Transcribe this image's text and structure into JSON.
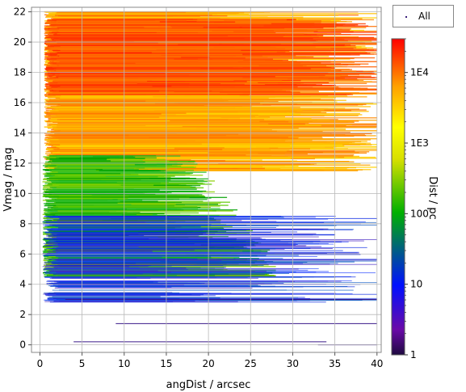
{
  "chart_data": {
    "type": "scatter",
    "xlabel": "angDist / arcsec",
    "ylabel": "Vmag / mag",
    "xlim": [
      -1,
      40.5
    ],
    "ylim": [
      -0.5,
      22.3
    ],
    "x_ticks": [
      0,
      5,
      10,
      15,
      20,
      25,
      30,
      35,
      40
    ],
    "y_ticks": [
      0,
      2,
      4,
      6,
      8,
      10,
      12,
      14,
      16,
      18,
      20,
      22
    ],
    "grid": true,
    "legend": {
      "position": "top-right",
      "entries": [
        "All"
      ]
    },
    "colorbar": {
      "label": "Dist / pc",
      "scale": "log",
      "range": [
        1,
        30000
      ],
      "ticks": [
        {
          "label": "1",
          "value": 1
        },
        {
          "label": "10",
          "value": 10
        },
        {
          "label": "100",
          "value": 100
        },
        {
          "label": "1E3",
          "value": 1000
        },
        {
          "label": "1E4",
          "value": 10000
        }
      ],
      "colors": [
        "#2a0f50",
        "#5a0aa0",
        "#0000ff",
        "#00a800",
        "#c8d800",
        "#ffff00",
        "#ffa500",
        "#ff0000"
      ]
    },
    "density_regions": [
      {
        "x": [
          0.5,
          40
        ],
        "y": [
          11.5,
          22
        ],
        "dist_pc": 3000,
        "description_color": "#ff9a1a"
      },
      {
        "x": [
          0.5,
          40
        ],
        "y": [
          16.5,
          21.5
        ],
        "dist_pc": 8000,
        "description_color": "#ff5500"
      },
      {
        "x": [
          0.3,
          28
        ],
        "y": [
          4.5,
          12.5
        ],
        "dist_pc": 100,
        "description_color": "#10b010"
      },
      {
        "x": [
          0.3,
          40
        ],
        "y": [
          2.8,
          8.5
        ],
        "dist_pc": 20,
        "description_color": "#2040e0"
      }
    ]
  }
}
